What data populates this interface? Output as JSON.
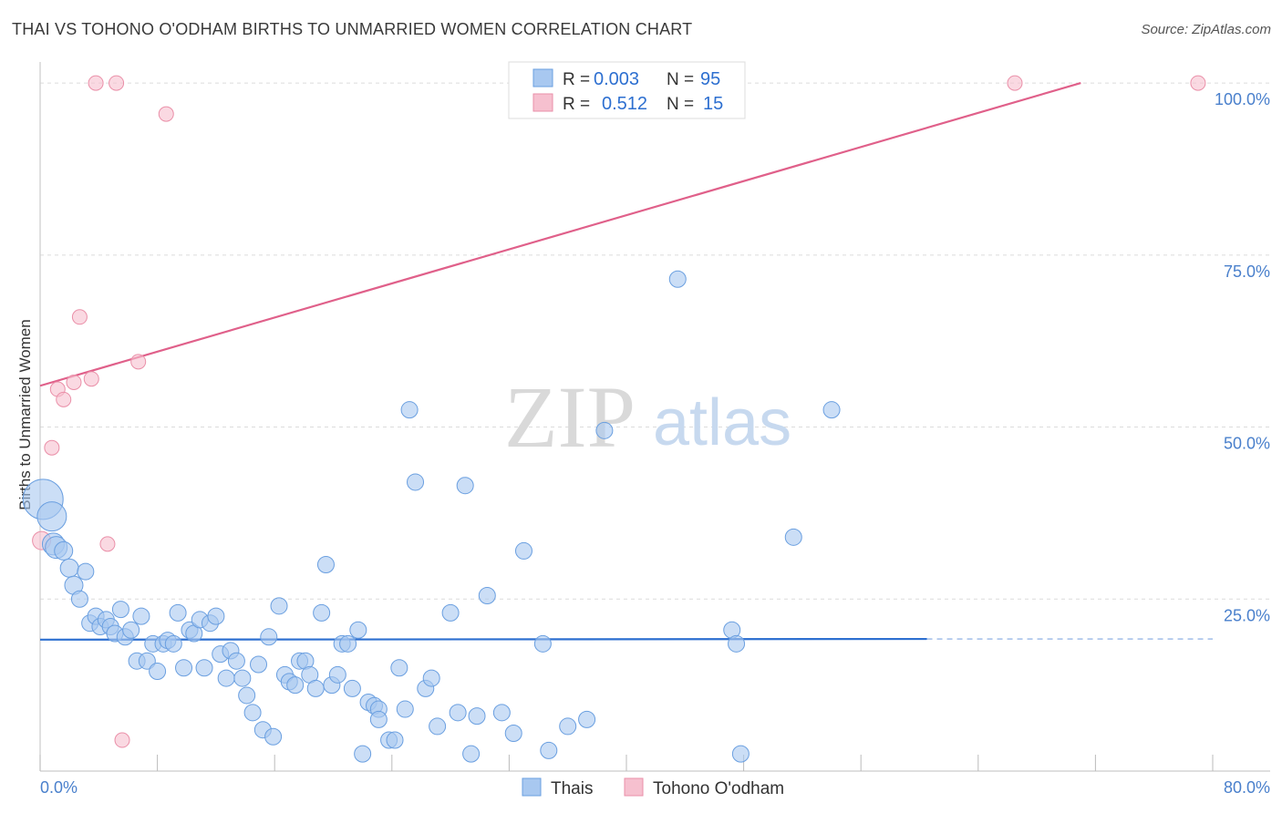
{
  "header": {
    "title": "THAI VS TOHONO O'ODHAM BIRTHS TO UNMARRIED WOMEN CORRELATION CHART",
    "source": "Source: ZipAtlas.com"
  },
  "watermark": {
    "zip": "ZIP",
    "atlas": "atlas"
  },
  "legend_top": {
    "rows": [
      {
        "r_label": "R =",
        "r_value": "0.003",
        "n_label": "N =",
        "n_value": "95",
        "color": "#a8c8f0"
      },
      {
        "r_label": "R =",
        "r_value": "0.512",
        "n_label": "N =",
        "n_value": "15",
        "color": "#f6b8c8"
      }
    ]
  },
  "legend_bottom": {
    "thais": "Thais",
    "tohono": "Tohono O'odham"
  },
  "colors": {
    "thais_fill": "#a8c8f0",
    "thais_stroke": "#6a9fe0",
    "thais_line": "#2d6fd0",
    "tohono_fill": "#f6c0cf",
    "tohono_stroke": "#ea8fa8",
    "tohono_line": "#e0608a",
    "tick_text": "#4a80cc"
  },
  "chart_data": {
    "type": "scatter",
    "title": "THAI VS TOHONO O'ODHAM BIRTHS TO UNMARRIED WOMEN CORRELATION CHART",
    "xlabel": "",
    "ylabel": "Births to Unmarried Women",
    "xlim": [
      0,
      80
    ],
    "ylim": [
      0,
      102
    ],
    "x_tick_labels": [
      "0.0%",
      "80.0%"
    ],
    "y_ticks": [
      25,
      50,
      75,
      100
    ],
    "y_tick_labels": [
      "25.0%",
      "50.0%",
      "75.0%",
      "100.0%"
    ],
    "grid": true,
    "legend_position": "top-center",
    "series": [
      {
        "name": "Thais",
        "R": 0.003,
        "N": 95,
        "trend": {
          "x": [
            0,
            60.5
          ],
          "y": [
            19.1,
            19.2
          ],
          "dashed_to": 80
        },
        "points": [
          {
            "x": 0.2,
            "y": 39.5,
            "s": 22
          },
          {
            "x": 0.8,
            "y": 37,
            "s": 16
          },
          {
            "x": 0.9,
            "y": 33,
            "s": 12
          },
          {
            "x": 1.1,
            "y": 32.5,
            "s": 12
          },
          {
            "x": 1.6,
            "y": 32,
            "s": 10
          },
          {
            "x": 2.0,
            "y": 29.5,
            "s": 10
          },
          {
            "x": 2.3,
            "y": 27,
            "s": 10
          },
          {
            "x": 2.7,
            "y": 25,
            "s": 9
          },
          {
            "x": 3.1,
            "y": 29,
            "s": 9
          },
          {
            "x": 3.4,
            "y": 21.5,
            "s": 9
          },
          {
            "x": 3.8,
            "y": 22.5,
            "s": 9
          },
          {
            "x": 4.1,
            "y": 21,
            "s": 9
          },
          {
            "x": 4.5,
            "y": 22,
            "s": 9
          },
          {
            "x": 4.8,
            "y": 21,
            "s": 9
          },
          {
            "x": 5.1,
            "y": 20,
            "s": 9
          },
          {
            "x": 5.5,
            "y": 23.5,
            "s": 9
          },
          {
            "x": 5.8,
            "y": 19.5,
            "s": 9
          },
          {
            "x": 6.2,
            "y": 20.5,
            "s": 9
          },
          {
            "x": 6.6,
            "y": 16,
            "s": 9
          },
          {
            "x": 6.9,
            "y": 22.5,
            "s": 9
          },
          {
            "x": 7.3,
            "y": 16,
            "s": 9
          },
          {
            "x": 7.7,
            "y": 18.5,
            "s": 9
          },
          {
            "x": 8.0,
            "y": 14.5,
            "s": 9
          },
          {
            "x": 8.4,
            "y": 18.5,
            "s": 9
          },
          {
            "x": 8.7,
            "y": 19,
            "s": 9
          },
          {
            "x": 9.1,
            "y": 18.5,
            "s": 9
          },
          {
            "x": 9.4,
            "y": 23,
            "s": 9
          },
          {
            "x": 9.8,
            "y": 15,
            "s": 9
          },
          {
            "x": 10.2,
            "y": 20.5,
            "s": 9
          },
          {
            "x": 10.5,
            "y": 20,
            "s": 9
          },
          {
            "x": 10.9,
            "y": 22,
            "s": 9
          },
          {
            "x": 11.2,
            "y": 15,
            "s": 9
          },
          {
            "x": 11.6,
            "y": 21.5,
            "s": 9
          },
          {
            "x": 12.0,
            "y": 22.5,
            "s": 9
          },
          {
            "x": 12.3,
            "y": 17,
            "s": 9
          },
          {
            "x": 12.7,
            "y": 13.5,
            "s": 9
          },
          {
            "x": 13.0,
            "y": 17.5,
            "s": 9
          },
          {
            "x": 13.4,
            "y": 16,
            "s": 9
          },
          {
            "x": 13.8,
            "y": 13.5,
            "s": 9
          },
          {
            "x": 14.1,
            "y": 11,
            "s": 9
          },
          {
            "x": 14.5,
            "y": 8.5,
            "s": 9
          },
          {
            "x": 14.9,
            "y": 15.5,
            "s": 9
          },
          {
            "x": 15.2,
            "y": 6,
            "s": 9
          },
          {
            "x": 15.6,
            "y": 19.5,
            "s": 9
          },
          {
            "x": 15.9,
            "y": 5,
            "s": 9
          },
          {
            "x": 16.3,
            "y": 24,
            "s": 9
          },
          {
            "x": 16.7,
            "y": 14,
            "s": 9
          },
          {
            "x": 17.0,
            "y": 13,
            "s": 9
          },
          {
            "x": 17.4,
            "y": 12.5,
            "s": 9
          },
          {
            "x": 17.7,
            "y": 16,
            "s": 9
          },
          {
            "x": 18.1,
            "y": 16,
            "s": 9
          },
          {
            "x": 18.4,
            "y": 14,
            "s": 9
          },
          {
            "x": 18.8,
            "y": 12,
            "s": 9
          },
          {
            "x": 19.2,
            "y": 23,
            "s": 9
          },
          {
            "x": 19.5,
            "y": 30,
            "s": 9
          },
          {
            "x": 19.9,
            "y": 12.5,
            "s": 9
          },
          {
            "x": 20.3,
            "y": 14,
            "s": 9
          },
          {
            "x": 20.6,
            "y": 18.5,
            "s": 9
          },
          {
            "x": 21.0,
            "y": 18.5,
            "s": 9
          },
          {
            "x": 21.3,
            "y": 12,
            "s": 9
          },
          {
            "x": 21.7,
            "y": 20.5,
            "s": 9
          },
          {
            "x": 22.0,
            "y": 2.5,
            "s": 9
          },
          {
            "x": 22.4,
            "y": 10,
            "s": 9
          },
          {
            "x": 22.8,
            "y": 9.5,
            "s": 9
          },
          {
            "x": 23.1,
            "y": 9,
            "s": 9
          },
          {
            "x": 23.1,
            "y": 7.5,
            "s": 9
          },
          {
            "x": 23.8,
            "y": 4.5,
            "s": 9
          },
          {
            "x": 24.2,
            "y": 4.5,
            "s": 9
          },
          {
            "x": 24.5,
            "y": 15,
            "s": 9
          },
          {
            "x": 24.9,
            "y": 9,
            "s": 9
          },
          {
            "x": 25.2,
            "y": 52.5,
            "s": 9
          },
          {
            "x": 25.6,
            "y": 42,
            "s": 9
          },
          {
            "x": 26.3,
            "y": 12,
            "s": 9
          },
          {
            "x": 26.7,
            "y": 13.5,
            "s": 9
          },
          {
            "x": 27.1,
            "y": 6.5,
            "s": 9
          },
          {
            "x": 28.0,
            "y": 23,
            "s": 9
          },
          {
            "x": 28.5,
            "y": 8.5,
            "s": 9
          },
          {
            "x": 29.0,
            "y": 41.5,
            "s": 9
          },
          {
            "x": 29.4,
            "y": 2.5,
            "s": 9
          },
          {
            "x": 29.8,
            "y": 8,
            "s": 9
          },
          {
            "x": 30.5,
            "y": 25.5,
            "s": 9
          },
          {
            "x": 31.5,
            "y": 8.5,
            "s": 9
          },
          {
            "x": 32.3,
            "y": 5.5,
            "s": 9
          },
          {
            "x": 33.0,
            "y": 32,
            "s": 9
          },
          {
            "x": 34.3,
            "y": 18.5,
            "s": 9
          },
          {
            "x": 34.7,
            "y": 3,
            "s": 9
          },
          {
            "x": 36.0,
            "y": 6.5,
            "s": 9
          },
          {
            "x": 37.3,
            "y": 7.5,
            "s": 9
          },
          {
            "x": 38.5,
            "y": 49.5,
            "s": 9
          },
          {
            "x": 43.5,
            "y": 71.5,
            "s": 9
          },
          {
            "x": 47.2,
            "y": 20.5,
            "s": 9
          },
          {
            "x": 47.5,
            "y": 18.5,
            "s": 9
          },
          {
            "x": 47.8,
            "y": 2.5,
            "s": 9
          },
          {
            "x": 51.4,
            "y": 34,
            "s": 9
          },
          {
            "x": 54.0,
            "y": 52.5,
            "s": 9
          }
        ]
      },
      {
        "name": "Tohono O'odham",
        "R": 0.512,
        "N": 15,
        "trend": {
          "x": [
            0,
            71
          ],
          "y": [
            56,
            100
          ]
        },
        "points": [
          {
            "x": 0.1,
            "y": 33.5,
            "s": 10
          },
          {
            "x": 0.8,
            "y": 47,
            "s": 8
          },
          {
            "x": 1.2,
            "y": 55.5,
            "s": 8
          },
          {
            "x": 1.6,
            "y": 54,
            "s": 8
          },
          {
            "x": 2.3,
            "y": 56.5,
            "s": 8
          },
          {
            "x": 2.7,
            "y": 66,
            "s": 8
          },
          {
            "x": 3.5,
            "y": 57,
            "s": 8
          },
          {
            "x": 4.6,
            "y": 33,
            "s": 8
          },
          {
            "x": 5.6,
            "y": 4.5,
            "s": 8
          },
          {
            "x": 6.7,
            "y": 59.5,
            "s": 8
          },
          {
            "x": 8.6,
            "y": 95.5,
            "s": 8
          },
          {
            "x": 3.8,
            "y": 100,
            "s": 8
          },
          {
            "x": 5.2,
            "y": 100,
            "s": 8
          },
          {
            "x": 66.5,
            "y": 100,
            "s": 8
          },
          {
            "x": 79.0,
            "y": 100,
            "s": 8
          }
        ]
      }
    ]
  }
}
